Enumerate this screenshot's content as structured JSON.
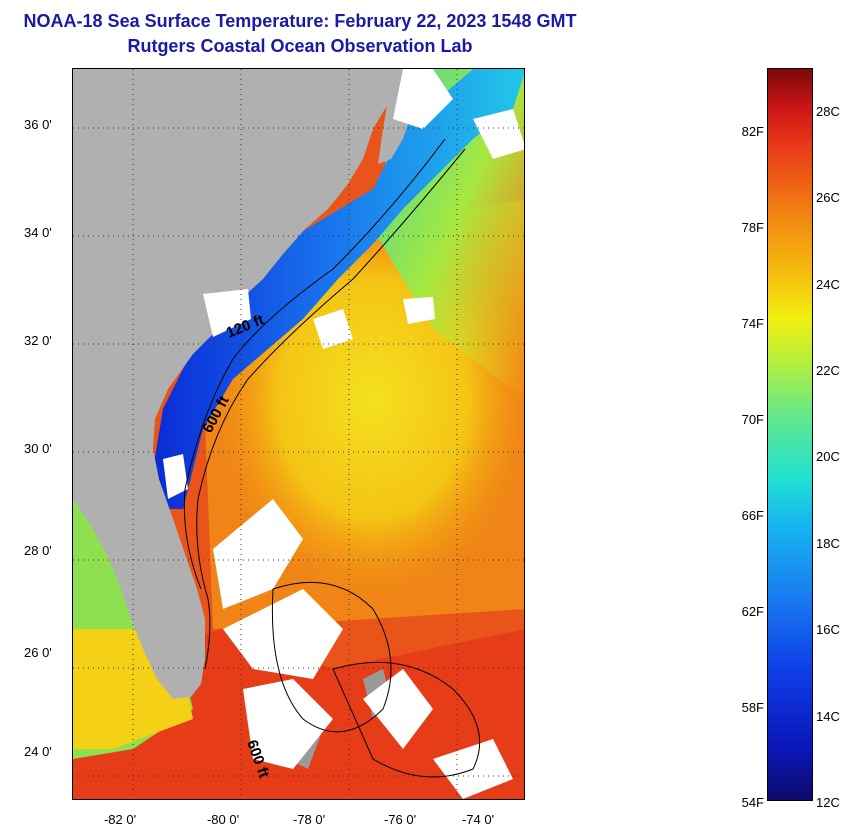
{
  "header": {
    "title": "NOAA-18 Sea Surface Temperature:  February 22, 2023 1548 GMT",
    "subtitle": "Rutgers Coastal Ocean Observation Lab"
  },
  "map": {
    "lat_labels": [
      "36 0'",
      "34 0'",
      "32 0'",
      "30 0'",
      "28 0'",
      "26 0'",
      "24 0'"
    ],
    "lon_labels": [
      "-82 0'",
      "-80 0'",
      "-78 0'",
      "-76 0'",
      "-74 0'"
    ],
    "depth_labels": [
      "120 ft",
      "600 ft",
      "600 ft"
    ],
    "colors": {
      "land": "#b0b0b0",
      "cloud": "#ffffff",
      "cold_coastal": "#1030d8",
      "warm_gulfstream": "#e8501a",
      "mid_shelf": "#f4c414"
    }
  },
  "colorbar": {
    "fahrenheit": [
      "82F",
      "78F",
      "74F",
      "70F",
      "66F",
      "62F",
      "58F",
      "54F"
    ],
    "celsius": [
      "28C",
      "26C",
      "24C",
      "22C",
      "20C",
      "18C",
      "16C",
      "14C",
      "12C"
    ]
  }
}
